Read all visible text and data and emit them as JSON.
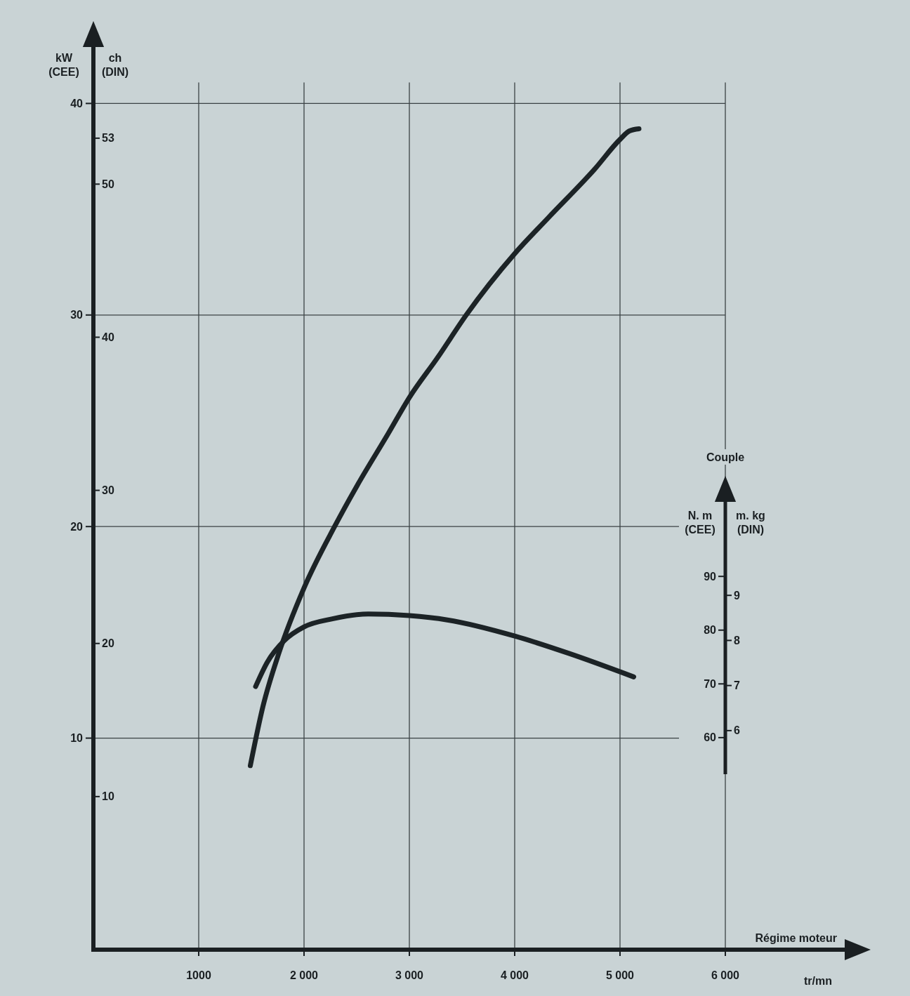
{
  "chart_data": {
    "type": "line",
    "xlabel": "Régime moteur",
    "ylabel": "kW (CEE)",
    "y2label": "ch (DIN)",
    "y3label": "N. m (CEE)",
    "annotations": [
      "Couple",
      "m. kg (DIN)",
      "9",
      "8",
      "7",
      "6",
      "tr/mn"
    ],
    "xlim": [
      0,
      7140
    ],
    "xticks": [
      1000,
      {
        "value": 2000,
        "label": "2 000"
      },
      {
        "value": 3000,
        "label": "3 000"
      },
      {
        "value": 4000,
        "label": "4 000"
      },
      {
        "value": 5000,
        "label": "5 000"
      },
      {
        "value": 6000,
        "label": "6 000"
      }
    ],
    "ylim": [
      0,
      42.7
    ],
    "yticks": [
      10,
      20,
      30,
      40
    ],
    "y2lim": [
      0,
      59.0
    ],
    "y2ticks": [
      10,
      20,
      30,
      40,
      50,
      53
    ],
    "y3lim": [
      53.2,
      104.0
    ],
    "y3ticks": [
      60,
      70,
      80,
      90
    ],
    "grid": true,
    "series": [
      {
        "color": "#1c2326",
        "x": [
          1490,
          1610,
          1760,
          2000,
          2290,
          2500,
          2800,
          3000,
          3270,
          3540,
          4000,
          4320,
          4760,
          5000,
          5090,
          5180
        ],
        "values": [
          8.7,
          11.5,
          14.0,
          17.1,
          20.0,
          21.9,
          24.4,
          26.1,
          28.0,
          30.0,
          32.9,
          34.6,
          36.9,
          38.3,
          38.7,
          38.8
        ]
      },
      {
        "color": "#1c2326",
        "axis": "y3",
        "x": [
          1540,
          1650,
          1810,
          2000,
          2270,
          2610,
          3000,
          3360,
          4000,
          4510,
          5130
        ],
        "values": [
          69.5,
          74.0,
          78.0,
          80.6,
          82.1,
          83.0,
          82.7,
          81.9,
          78.9,
          75.7,
          71.3
        ]
      }
    ]
  }
}
